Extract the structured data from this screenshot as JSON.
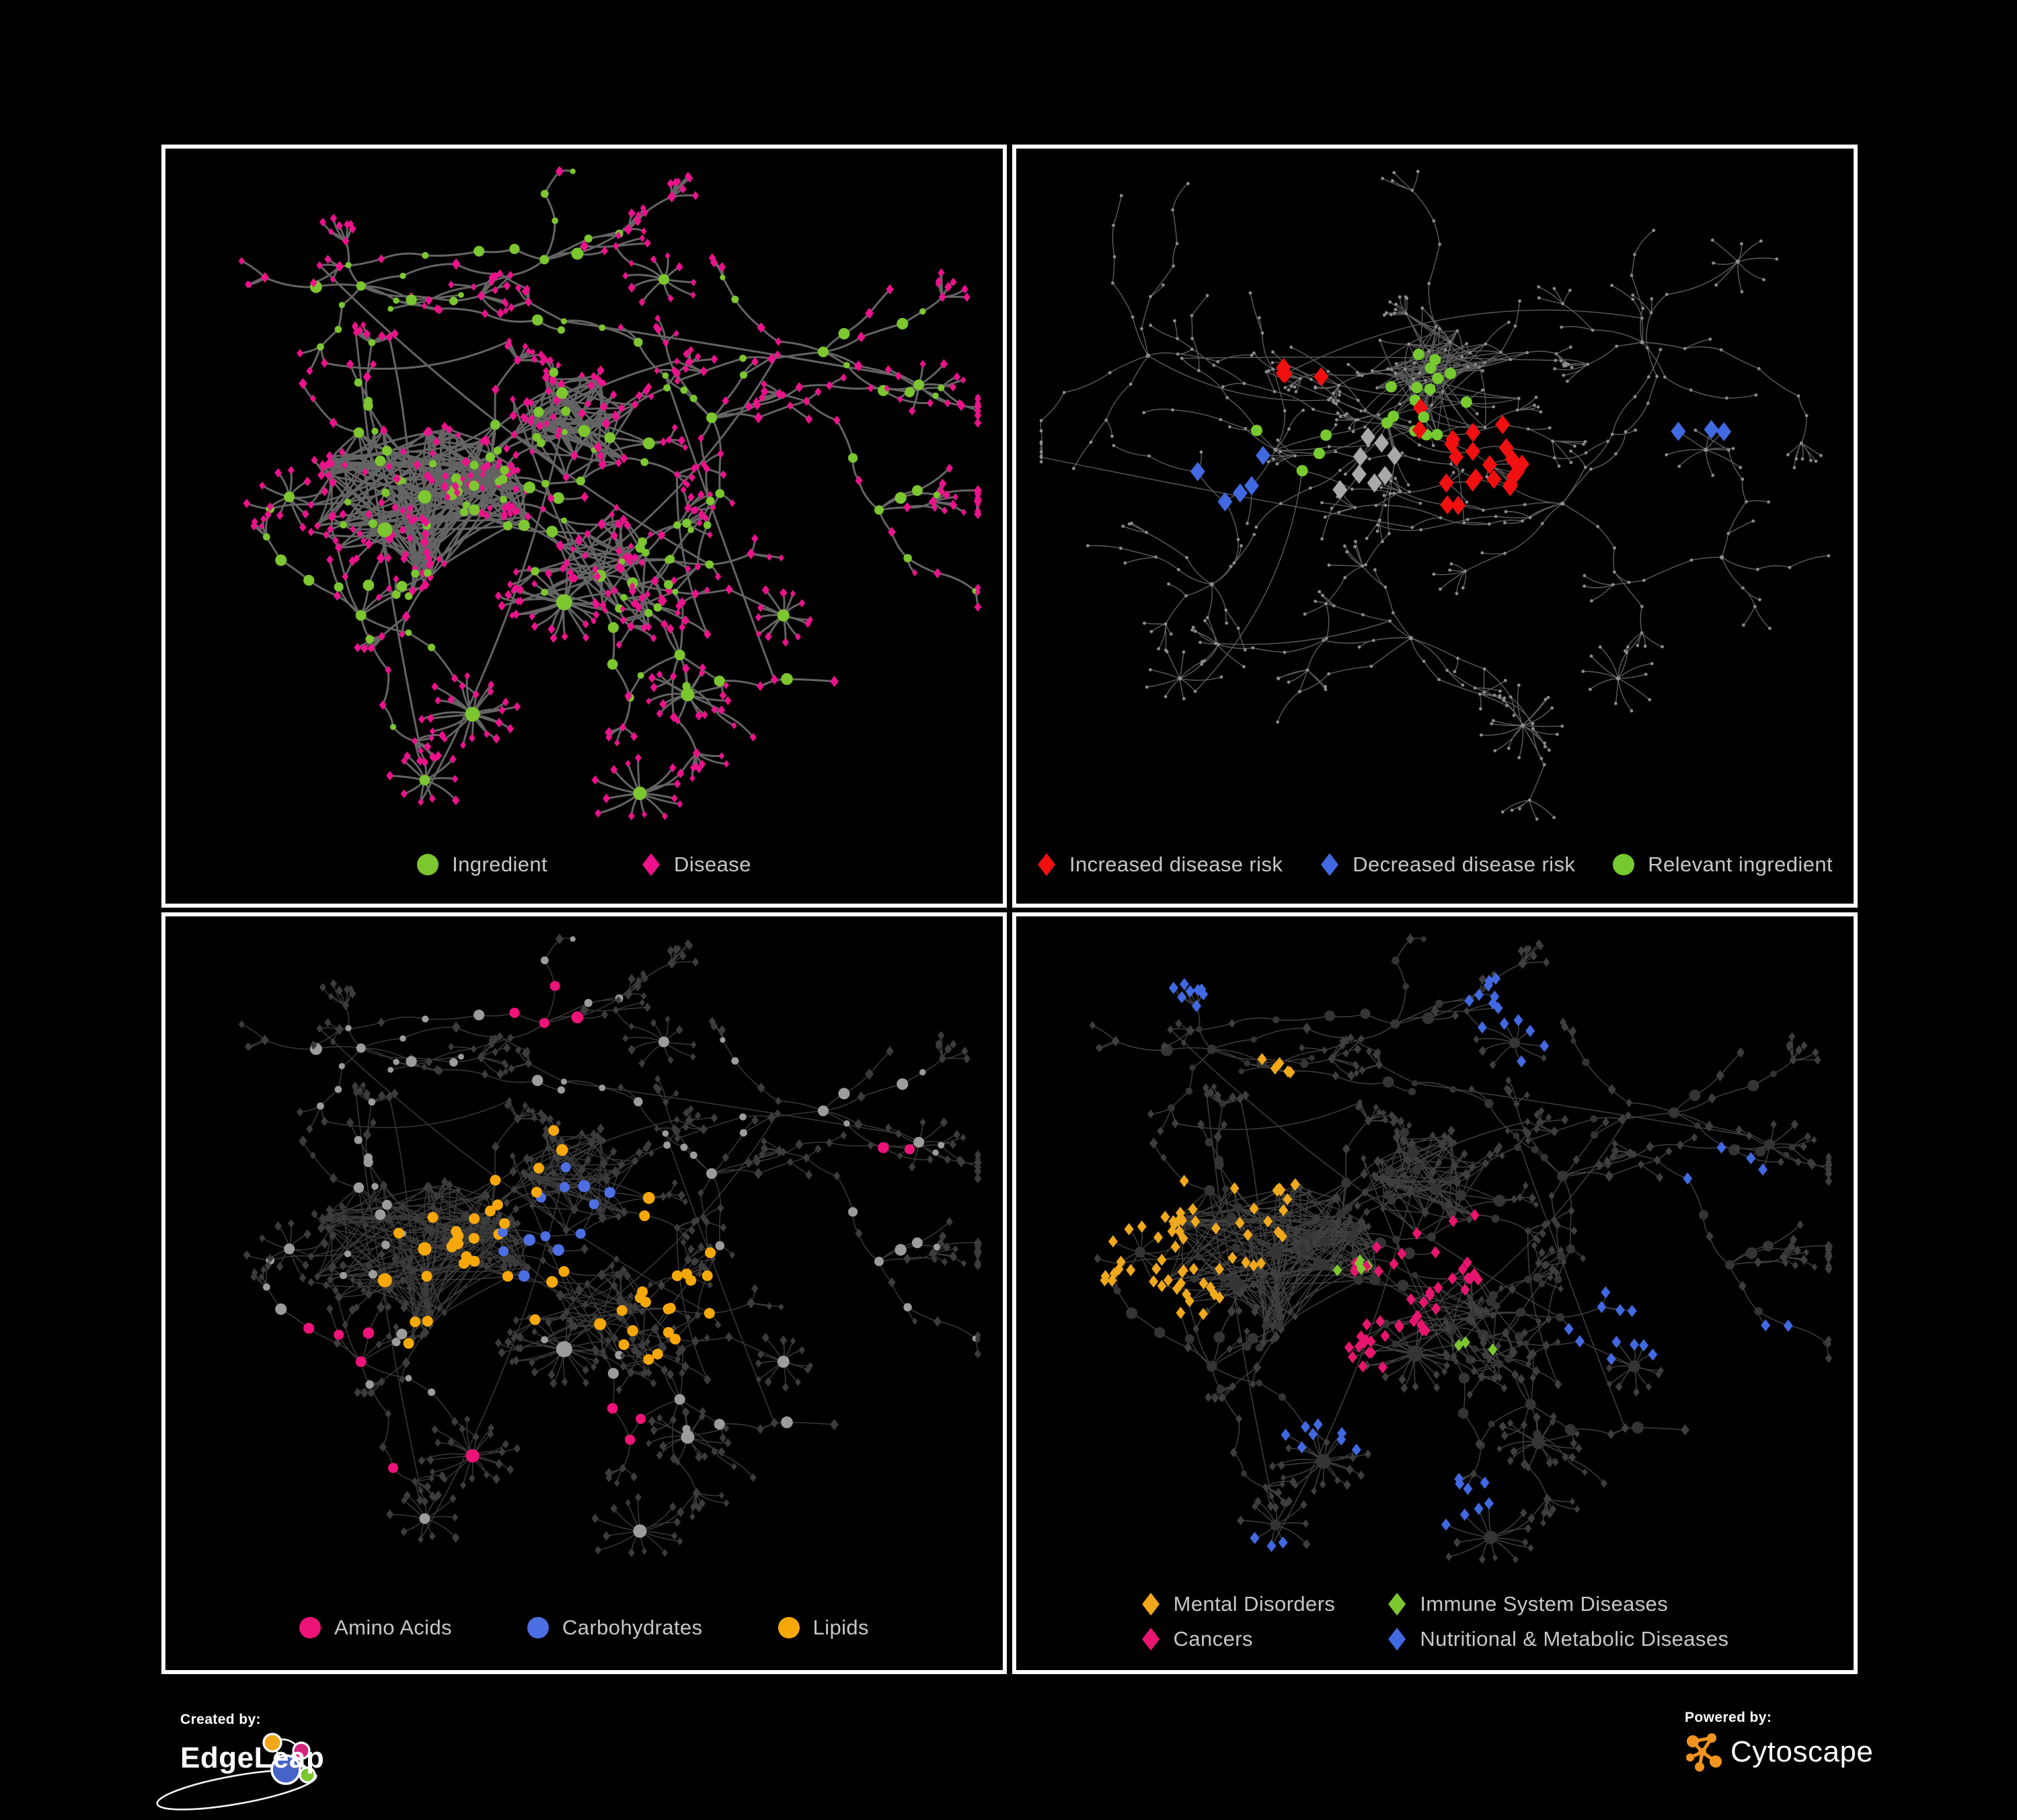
{
  "figure": {
    "background": "#000000",
    "panel_background": "#000000",
    "panel_border": "#FFFFFF"
  },
  "panels": {
    "ingredient_disease": {
      "legend": [
        {
          "label": "Ingredient",
          "shape": "circle",
          "color": "#7CC62F"
        },
        {
          "label": "Disease",
          "shape": "diamond",
          "color": "#EC128C"
        }
      ]
    },
    "disease_risk": {
      "legend": [
        {
          "label": "Increased disease risk",
          "shape": "diamond",
          "color": "#F01010"
        },
        {
          "label": "Decreased disease risk",
          "shape": "diamond",
          "color": "#4169E1"
        },
        {
          "label": "Relevant ingredient",
          "shape": "circle",
          "color": "#76C92F"
        }
      ]
    },
    "nutrients": {
      "legend": [
        {
          "label": "Amino Acids",
          "shape": "circle",
          "color": "#EE1378"
        },
        {
          "label": "Carbohydrates",
          "shape": "circle",
          "color": "#4D6FE3"
        },
        {
          "label": "Lipids",
          "shape": "circle",
          "color": "#F6A80B"
        }
      ]
    },
    "disease_classes": {
      "legend": [
        {
          "label": "Mental Disorders",
          "shape": "diamond",
          "color": "#F0A81C"
        },
        {
          "label": "Immune System Diseases",
          "shape": "diamond",
          "color": "#7CC62F"
        },
        {
          "label": "Cancers",
          "shape": "diamond",
          "color": "#E8156F"
        },
        {
          "label": "Nutritional & Metabolic Diseases",
          "shape": "diamond",
          "color": "#4169E1"
        }
      ]
    }
  },
  "network_styles": {
    "p1": {
      "edge": "#6A6A6A",
      "edge_width": 3,
      "edge_opacity": 0.95,
      "circle": "#7CC62F",
      "diamond": "#EC128C"
    },
    "p2": {
      "edge": "#6E6E6E",
      "edge_width": 1.4,
      "edge_opacity": 0.85,
      "dot": "#8C8C8C",
      "groups": {
        "red": "#F01010",
        "blue": "#4169E1",
        "silver": "#A9A9A9",
        "green": "#76C92F"
      }
    },
    "p3": {
      "edge": "#8E8E8E",
      "edge_width": 1.5,
      "edge_opacity": 0.4,
      "circle": "#9C9C9C",
      "diamond": "#3C3C3C",
      "groups": {
        "amino": "#EE1378",
        "carb": "#4D6FE3",
        "lipid": "#F6A80B"
      }
    },
    "p4": {
      "edge": "#969696",
      "edge_width": 1.5,
      "edge_opacity": 0.42,
      "circle": "#343434",
      "diamond": "#3E3E3E",
      "groups": {
        "mental": "#F0A81C",
        "immune": "#7CC62F",
        "cancer": "#E8156F",
        "nutr": "#4169E1"
      }
    }
  },
  "footer": {
    "created_by_label": "Created by:",
    "edgeleap_name": "EdgeLeap",
    "powered_by_label": "Powered by:",
    "cytoscape_name": "Cytoscape",
    "edgeleap_logo": {
      "blue": "#4663C8",
      "orange": "#F2A71B",
      "pink": "#D4257E",
      "green": "#7CC62F"
    },
    "cytoscape_logo": {
      "orange": "#F0941F"
    }
  }
}
